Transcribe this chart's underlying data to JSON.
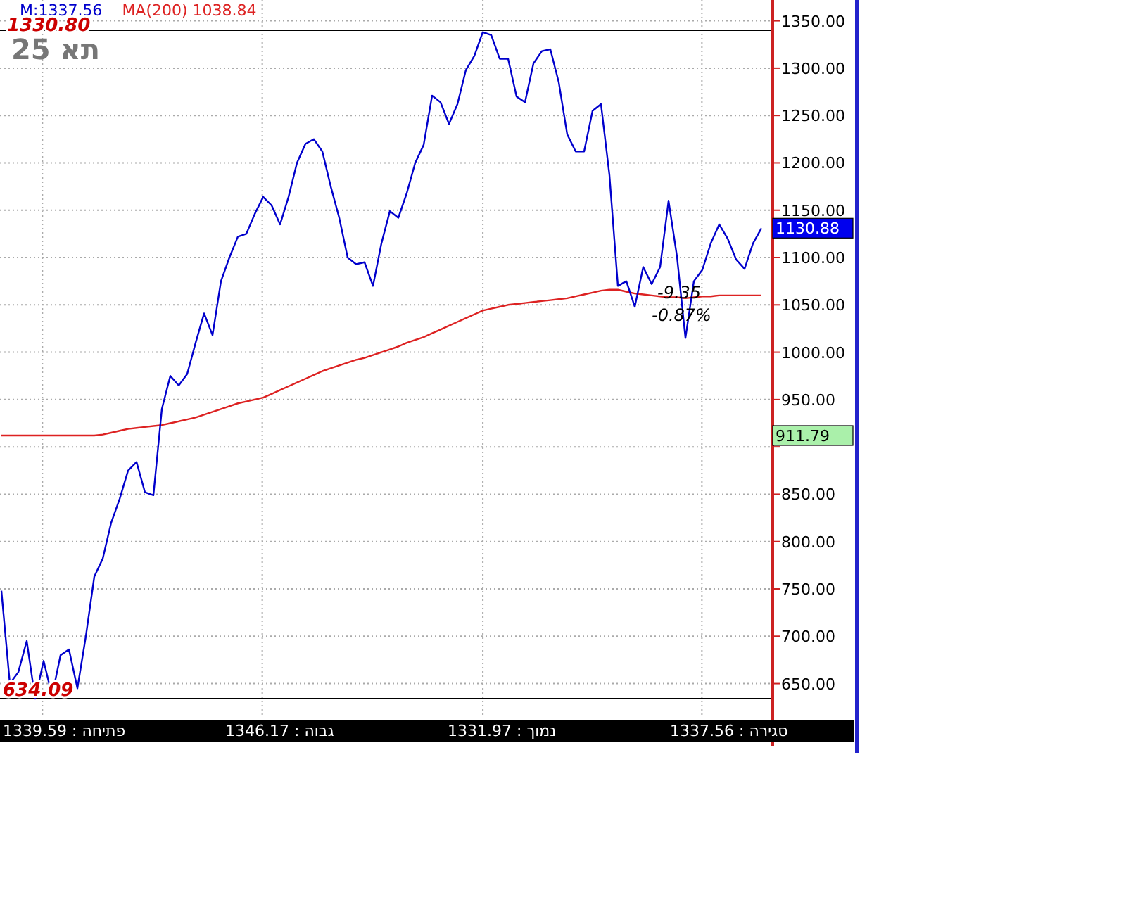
{
  "chart_data": {
    "type": "line",
    "title": "תא 25",
    "categories": [
      null,
      null,
      null,
      null,
      null,
      null,
      null,
      null,
      null,
      null,
      null,
      null,
      null,
      null,
      null,
      null,
      null,
      null,
      null,
      null,
      null,
      null,
      null,
      null,
      null,
      null,
      null,
      null,
      null,
      null,
      null,
      null,
      null,
      null,
      null,
      null,
      null,
      null,
      null,
      null,
      null,
      null,
      null,
      null,
      null,
      null,
      null,
      null,
      null,
      null,
      null,
      null,
      null,
      null,
      null,
      null,
      null,
      null,
      null,
      null,
      null,
      null,
      null,
      null,
      null,
      null,
      null,
      null,
      null,
      null,
      null,
      null,
      null,
      null,
      null,
      null,
      null,
      null,
      null,
      null,
      null,
      null,
      null,
      null,
      null,
      null,
      null,
      null,
      null,
      null,
      null
    ],
    "series": [
      {
        "name": "M:1337.56",
        "color": "#0000cc",
        "values": [
          748,
          650,
          662,
          695,
          634,
          674,
          637,
          680,
          686,
          645,
          700,
          763,
          782,
          820,
          845,
          875,
          884,
          852,
          849,
          940,
          975,
          965,
          977,
          1010,
          1041,
          1018,
          1075,
          1100,
          1122,
          1125,
          1146,
          1164,
          1155,
          1135,
          1164,
          1200,
          1220,
          1225,
          1212,
          1175,
          1142,
          1100,
          1093,
          1095,
          1070,
          1115,
          1149,
          1142,
          1168,
          1200,
          1219,
          1271,
          1264,
          1241,
          1262,
          1298,
          1313,
          1338,
          1335,
          1310,
          1310,
          1270,
          1264,
          1305,
          1318,
          1320,
          1285,
          1230,
          1212,
          1212,
          1255,
          1262,
          1187,
          1070,
          1075,
          1048,
          1090,
          1072,
          1090,
          1160,
          1101,
          1015,
          1075,
          1087,
          1115,
          1135,
          1120,
          1098,
          1088,
          1115,
          1131
        ]
      },
      {
        "name": "MA(200)   1038.84",
        "color": "#dd2222",
        "values": [
          912,
          912,
          912,
          912,
          912,
          912,
          912,
          912,
          912,
          912,
          912,
          912,
          913,
          915,
          917,
          919,
          920,
          921,
          922,
          923,
          925,
          927,
          929,
          931,
          934,
          937,
          940,
          943,
          946,
          948,
          950,
          952,
          956,
          960,
          964,
          968,
          972,
          976,
          980,
          983,
          986,
          989,
          992,
          994,
          997,
          1000,
          1003,
          1006,
          1010,
          1013,
          1016,
          1020,
          1024,
          1028,
          1032,
          1036,
          1040,
          1044,
          1046,
          1048,
          1050,
          1051,
          1052,
          1053,
          1054,
          1055,
          1056,
          1057,
          1059,
          1061,
          1063,
          1065,
          1066,
          1066,
          1064,
          1062,
          1061,
          1060,
          1059,
          1058,
          1058,
          1057,
          1058,
          1059,
          1059,
          1060,
          1060,
          1060,
          1060,
          1060,
          1060
        ]
      }
    ],
    "ylim": [
      614,
      1372
    ],
    "yticks": [
      {
        "value": 650,
        "label": "650.00"
      },
      {
        "value": 700,
        "label": "700.00"
      },
      {
        "value": 750,
        "label": "750.00"
      },
      {
        "value": 800,
        "label": "800.00"
      },
      {
        "value": 850,
        "label": "850.00"
      },
      {
        "value": 900,
        "label": null
      },
      {
        "value": 950,
        "label": "950.00"
      },
      {
        "value": 1000,
        "label": "1000.00"
      },
      {
        "value": 1050,
        "label": "1050.00"
      },
      {
        "value": 1100,
        "label": "1100.00"
      },
      {
        "value": 1150,
        "label": "1150.00"
      },
      {
        "value": 1200,
        "label": "1200.00"
      },
      {
        "value": 1250,
        "label": "1250.00"
      },
      {
        "value": 1300,
        "label": "1300.00"
      },
      {
        "value": 1350,
        "label": "1350.00"
      }
    ],
    "ref_lines": [
      {
        "axis": "y",
        "value": 1340,
        "color": "#000000"
      },
      {
        "axis": "y",
        "value": 634.09,
        "label": "634.09",
        "color": "#000000"
      }
    ],
    "annotations": [
      "1330.80",
      "-9.35",
      "-0.87%",
      "1130.88",
      "911.79",
      "1339.59 : פתיחה",
      "1346.17 : גבוה",
      "1331.97 : נמוך",
      "1337.56 : סגירה"
    ],
    "grid": true,
    "legend": "top left",
    "line_style": "solid"
  }
}
